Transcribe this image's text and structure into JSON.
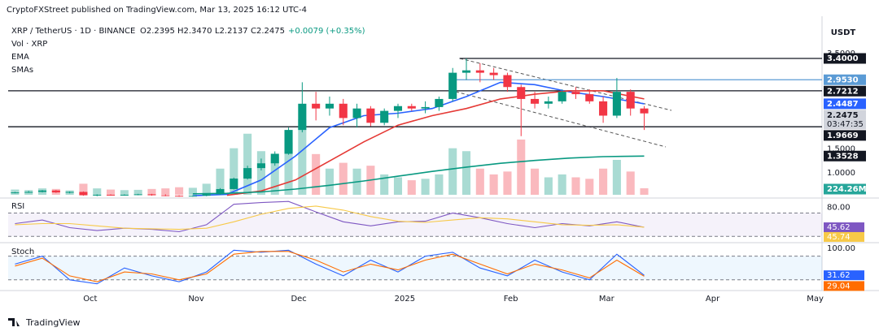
{
  "header": {
    "published": "CryptoFXStreet published on TradingView.com, Mar 13, 2025 16:12 UTC-4",
    "symbol": "XRP / TetherUS · 1D · BINANCE",
    "open": "O2.2395",
    "high": "H2.3470",
    "low": "L2.2137",
    "close": "C2.2475",
    "change": "+0.0079 (+0.35%)",
    "volume_legend": "Vol · XRP",
    "ema_legend": "EMA",
    "sma_legend": "SMAs",
    "currency": "USDT"
  },
  "footer": {
    "brand": "TradingView"
  },
  "chart_data": [
    {
      "type": "candlestick",
      "up_color": "#089981",
      "down_color": "#f23645",
      "xlim": [
        -24,
        214
      ],
      "xticks": [
        {
          "value": 0,
          "label": "Oct"
        },
        {
          "value": 31,
          "label": "Nov"
        },
        {
          "value": 61,
          "label": "Dec"
        },
        {
          "value": 92,
          "label": "2025"
        },
        {
          "value": 123,
          "label": "Feb"
        },
        {
          "value": 151,
          "label": "Mar"
        },
        {
          "value": 182,
          "label": "Apr"
        },
        {
          "value": 212,
          "label": "May"
        }
      ],
      "ylim": [
        0.54,
        4.2
      ],
      "yticks": [
        {
          "value": 1.0,
          "label": "1.0000"
        },
        {
          "value": 1.5,
          "label": "1.5000"
        },
        {
          "value": 3.5,
          "label": "3.5000"
        }
      ],
      "x": [
        -22,
        -18,
        -14,
        -10,
        -6,
        -2,
        2,
        6,
        10,
        14,
        18,
        22,
        26,
        30,
        34,
        38,
        42,
        46,
        50,
        54,
        58,
        62,
        66,
        70,
        74,
        78,
        82,
        86,
        90,
        94,
        98,
        102,
        106,
        110,
        114,
        118,
        122,
        126,
        130,
        134,
        138,
        142,
        146,
        150,
        154,
        158,
        162
      ],
      "open": [
        0.58,
        0.59,
        0.6,
        0.63,
        0.59,
        0.6,
        0.53,
        0.54,
        0.53,
        0.54,
        0.55,
        0.53,
        0.52,
        0.51,
        0.52,
        0.55,
        0.66,
        0.88,
        1.1,
        1.2,
        1.4,
        1.9,
        2.45,
        2.35,
        2.45,
        2.15,
        2.35,
        2.05,
        2.3,
        2.4,
        2.35,
        2.38,
        2.55,
        3.1,
        3.15,
        3.1,
        3.05,
        2.8,
        2.55,
        2.45,
        2.5,
        2.7,
        2.65,
        2.5,
        2.2,
        2.7,
        2.35
      ],
      "high": [
        0.6,
        0.62,
        0.64,
        0.64,
        0.61,
        0.61,
        0.55,
        0.55,
        0.55,
        0.56,
        0.56,
        0.55,
        0.53,
        0.53,
        0.56,
        0.68,
        0.9,
        1.15,
        1.3,
        1.45,
        1.95,
        2.9,
        2.7,
        2.6,
        2.55,
        2.45,
        2.4,
        2.35,
        2.45,
        2.45,
        2.5,
        2.6,
        3.2,
        3.4,
        3.3,
        3.2,
        3.1,
        2.85,
        2.7,
        2.6,
        2.75,
        2.8,
        2.75,
        2.6,
        2.99,
        2.75,
        2.4
      ],
      "low": [
        0.57,
        0.58,
        0.59,
        0.58,
        0.57,
        0.52,
        0.51,
        0.52,
        0.52,
        0.53,
        0.52,
        0.51,
        0.5,
        0.5,
        0.51,
        0.54,
        0.65,
        0.86,
        1.05,
        1.15,
        1.38,
        1.85,
        2.1,
        2.2,
        2.0,
        1.95,
        1.98,
        2.0,
        2.15,
        2.3,
        2.25,
        2.3,
        2.5,
        2.95,
        2.9,
        2.95,
        2.7,
        1.77,
        2.35,
        2.35,
        2.45,
        2.55,
        2.45,
        2.05,
        2.15,
        2.2,
        1.9
      ],
      "close": [
        0.59,
        0.6,
        0.63,
        0.59,
        0.6,
        0.53,
        0.54,
        0.53,
        0.54,
        0.55,
        0.53,
        0.52,
        0.51,
        0.52,
        0.55,
        0.66,
        0.88,
        1.1,
        1.2,
        1.4,
        1.9,
        2.45,
        2.35,
        2.45,
        2.15,
        2.35,
        2.05,
        2.3,
        2.4,
        2.35,
        2.38,
        2.55,
        3.1,
        3.15,
        3.1,
        3.05,
        2.8,
        2.55,
        2.45,
        2.5,
        2.7,
        2.65,
        2.5,
        2.2,
        2.7,
        2.35,
        2.2475
      ],
      "last_label": "2.2475",
      "countdown": "03:47:35",
      "volume": {
        "vlim": [
          0,
          6000
        ],
        "values": [
          180,
          160,
          220,
          200,
          150,
          380,
          220,
          180,
          160,
          170,
          200,
          220,
          260,
          240,
          380,
          900,
          1600,
          2100,
          1500,
          1300,
          1800,
          2600,
          1400,
          900,
          1100,
          900,
          1000,
          700,
          600,
          500,
          550,
          700,
          1600,
          1500,
          900,
          700,
          800,
          1900,
          900,
          600,
          700,
          600,
          550,
          900,
          1200,
          800,
          224.26
        ],
        "last_label": "224.26M",
        "label_color": "#26a69a"
      },
      "overlays": [
        {
          "color": "#2962ff",
          "x": [
            30,
            40,
            50,
            60,
            70,
            80,
            90,
            100,
            110,
            120,
            130,
            140,
            150,
            162
          ],
          "values": [
            0.52,
            0.55,
            0.85,
            1.35,
            1.95,
            2.2,
            2.25,
            2.35,
            2.6,
            2.9,
            2.85,
            2.7,
            2.6,
            2.4487
          ],
          "last_label": "2.4487"
        },
        {
          "color": "#e53935",
          "x": [
            40,
            50,
            60,
            70,
            80,
            90,
            100,
            110,
            120,
            130,
            140,
            150,
            162
          ],
          "values": [
            0.53,
            0.62,
            0.85,
            1.25,
            1.65,
            2.0,
            2.2,
            2.35,
            2.55,
            2.65,
            2.72,
            2.72,
            2.55
          ]
        },
        {
          "color": "#089981",
          "x": [
            30,
            40,
            50,
            60,
            70,
            80,
            90,
            100,
            110,
            120,
            130,
            140,
            150,
            162
          ],
          "values": [
            0.56,
            0.57,
            0.6,
            0.66,
            0.74,
            0.83,
            0.93,
            1.03,
            1.12,
            1.2,
            1.26,
            1.31,
            1.34,
            1.3528
          ],
          "last_label": "1.3528"
        }
      ],
      "price_lines": [
        {
          "value": 3.4,
          "label": "3.4000",
          "color": "#131722",
          "start": 108
        },
        {
          "value": 2.953,
          "label": "2.9530",
          "color": "#5b9bd5",
          "start": 106
        },
        {
          "value": 2.7212,
          "label": "2.7212",
          "color": "#131722"
        },
        {
          "value": 1.9669,
          "label": "1.9669",
          "color": "#131722"
        }
      ]
    },
    {
      "type": "line",
      "title": "RSI",
      "ylim": [
        22,
        93
      ],
      "yticks": [
        {
          "value": 80,
          "label": "80.00"
        }
      ],
      "bands": [
        30,
        70
      ],
      "band_color": "#7e57c2",
      "x": [
        -22,
        -14,
        -6,
        2,
        10,
        18,
        26,
        34,
        42,
        50,
        58,
        66,
        74,
        82,
        90,
        98,
        106,
        114,
        122,
        130,
        138,
        146,
        154,
        162
      ],
      "series": [
        {
          "color": "#7e57c2",
          "values": [
            52,
            58,
            45,
            40,
            44,
            42,
            38,
            50,
            85,
            88,
            90,
            72,
            55,
            48,
            55,
            56,
            70,
            62,
            52,
            45,
            52,
            48,
            55,
            45.62
          ]
        },
        {
          "color": "#f7c948",
          "values": [
            50,
            52,
            52,
            48,
            44,
            43,
            42,
            44,
            55,
            68,
            78,
            82,
            75,
            64,
            56,
            54,
            58,
            62,
            60,
            55,
            50,
            49,
            50,
            45.74
          ]
        }
      ]
    },
    {
      "type": "line",
      "title": "Stoch",
      "ylim": [
        -3,
        108
      ],
      "yticks": [
        {
          "value": 100,
          "label": "100.00"
        }
      ],
      "bands": [
        20,
        80
      ],
      "band_color": "#2196f3",
      "x": [
        -22,
        -14,
        -6,
        2,
        10,
        18,
        26,
        34,
        42,
        50,
        58,
        66,
        74,
        82,
        90,
        98,
        106,
        114,
        122,
        130,
        138,
        146,
        154,
        162
      ],
      "series": [
        {
          "color": "#2962ff",
          "values": [
            60,
            80,
            20,
            10,
            50,
            30,
            15,
            40,
            95,
            90,
            95,
            60,
            30,
            70,
            40,
            80,
            90,
            50,
            30,
            70,
            40,
            20,
            85,
            31.62
          ]
        },
        {
          "color": "#ff6d00",
          "values": [
            55,
            75,
            30,
            15,
            40,
            35,
            20,
            35,
            85,
            92,
            92,
            70,
            40,
            60,
            45,
            70,
            85,
            60,
            35,
            60,
            45,
            25,
            70,
            29.04
          ]
        }
      ]
    }
  ]
}
